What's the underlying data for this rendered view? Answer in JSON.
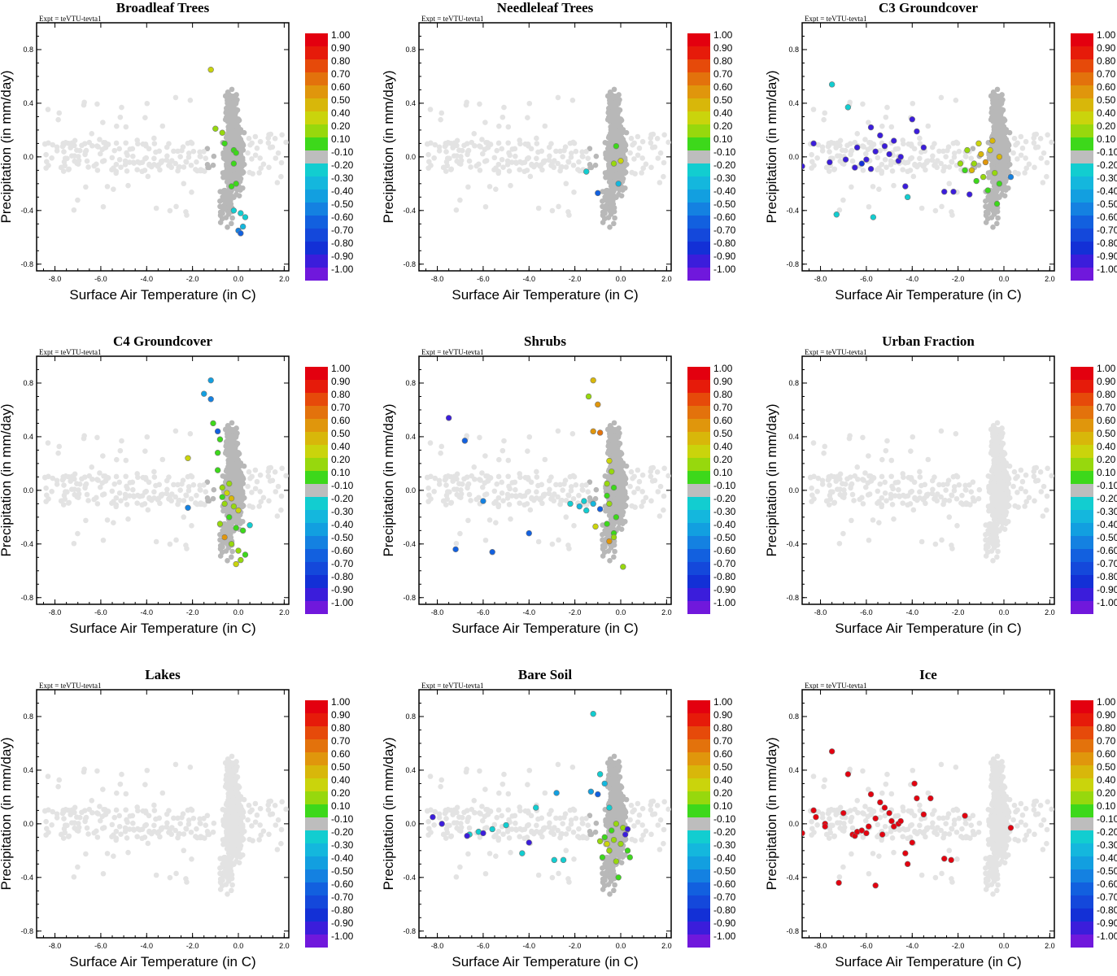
{
  "figure": {
    "expt_label": "Expt = teVTU-tevta1",
    "x_axis_label": "Surface Air Temperature (in C)",
    "y_axis_label": "Precipitation (in mm/day)"
  },
  "colorbar": {
    "levels": [
      "1.00",
      "0.90",
      "0.80",
      "0.70",
      "0.60",
      "0.50",
      "0.40",
      "0.20",
      "0.10",
      "-0.10",
      "-0.20",
      "-0.30",
      "-0.40",
      "-0.50",
      "-0.60",
      "-0.70",
      "-0.80",
      "-0.90",
      "-1.00"
    ],
    "colors": [
      "#e3000f",
      "#e61b0a",
      "#e64a0a",
      "#e3720c",
      "#e0960c",
      "#d8b70a",
      "#cad40c",
      "#97d80d",
      "#3dd81b",
      "#bdbdbd",
      "#12cdd0",
      "#14b7dd",
      "#129fe0",
      "#1481e1",
      "#1260df",
      "#1448db",
      "#1330d6",
      "#3b1ddb",
      "#7018dc"
    ]
  },
  "chart_data": [
    {
      "type": "scatter",
      "title": "Broadleaf Trees",
      "xlabel": "Surface Air Temperature (in C)",
      "ylabel": "Precipitation (in mm/day)",
      "xlim": [
        -8.8,
        2.2
      ],
      "ylim": [
        -0.85,
        1.0
      ],
      "xticks": [
        -8.0,
        -6.0,
        -4.0,
        -2.0,
        0.0,
        2.0
      ],
      "yticks": [
        0.8,
        0.4,
        0.0,
        -0.4,
        -0.8
      ],
      "colored_points": [
        [
          -1.2,
          0.65,
          0.35
        ],
        [
          -1.0,
          0.21,
          0.2
        ],
        [
          -0.7,
          0.18,
          0.3
        ],
        [
          -0.6,
          0.1,
          0.15
        ],
        [
          -0.2,
          0.05,
          0.15
        ],
        [
          -0.1,
          0.03,
          0.1
        ],
        [
          -0.2,
          -0.05,
          0.15
        ],
        [
          -0.1,
          -0.2,
          0.15
        ],
        [
          -0.3,
          -0.22,
          0.15
        ],
        [
          -0.2,
          -0.4,
          -0.2
        ],
        [
          0.1,
          -0.42,
          -0.2
        ],
        [
          0.3,
          -0.45,
          -0.2
        ],
        [
          0.2,
          -0.52,
          -0.3
        ],
        [
          0.0,
          -0.55,
          -0.5
        ],
        [
          0.1,
          -0.57,
          -0.6
        ]
      ]
    },
    {
      "type": "scatter",
      "title": "Needleleaf Trees",
      "xlabel": "Surface Air Temperature (in C)",
      "ylabel": "Precipitation (in mm/day)",
      "xlim": [
        -8.8,
        2.2
      ],
      "ylim": [
        -0.85,
        1.0
      ],
      "xticks": [
        -8.0,
        -6.0,
        -4.0,
        -2.0,
        0.0,
        2.0
      ],
      "yticks": [
        0.8,
        0.4,
        0.0,
        -0.4,
        -0.8
      ],
      "colored_points": [
        [
          -0.2,
          0.08,
          0.15
        ],
        [
          0.0,
          -0.03,
          0.4
        ],
        [
          -0.3,
          -0.05,
          0.3
        ],
        [
          -1.5,
          -0.11,
          -0.2
        ],
        [
          -1.0,
          -0.27,
          -0.6
        ],
        [
          -0.1,
          -0.2,
          -0.3
        ]
      ]
    },
    {
      "type": "scatter",
      "title": "C3 Groundcover",
      "xlabel": "Surface Air Temperature (in C)",
      "ylabel": "Precipitation (in mm/day)",
      "xlim": [
        -8.8,
        2.2
      ],
      "ylim": [
        -0.85,
        1.0
      ],
      "xticks": [
        -8.0,
        -6.0,
        -4.0,
        -2.0,
        0.0,
        2.0
      ],
      "yticks": [
        0.8,
        0.4,
        0.0,
        -0.4,
        -0.8
      ],
      "colored_points": [
        [
          -8.8,
          -0.07,
          -0.9
        ],
        [
          -8.3,
          0.1,
          -0.9
        ],
        [
          -7.5,
          0.54,
          -0.25
        ],
        [
          -6.8,
          0.37,
          -0.25
        ],
        [
          -7.3,
          -0.43,
          -0.25
        ],
        [
          -5.7,
          -0.45,
          -0.2
        ],
        [
          -7.6,
          -0.04,
          -0.9
        ],
        [
          -6.9,
          -0.02,
          -0.9
        ],
        [
          -6.5,
          -0.08,
          -0.9
        ],
        [
          -6.2,
          -0.05,
          -0.85
        ],
        [
          -6.0,
          -0.02,
          -0.9
        ],
        [
          -5.8,
          -0.09,
          -0.9
        ],
        [
          -5.6,
          0.04,
          -0.9
        ],
        [
          -5.4,
          0.16,
          -0.9
        ],
        [
          -5.2,
          0.08,
          -0.9
        ],
        [
          -5.0,
          0.02,
          -0.9
        ],
        [
          -4.8,
          0.12,
          -0.9
        ],
        [
          -4.6,
          -0.03,
          -0.9
        ],
        [
          -4.5,
          0.0,
          -0.9
        ],
        [
          -4.3,
          -0.22,
          -0.9
        ],
        [
          -4.2,
          -0.3,
          -0.2
        ],
        [
          -3.8,
          0.19,
          -0.9
        ],
        [
          -4.0,
          0.28,
          -0.9
        ],
        [
          -3.5,
          0.07,
          -0.9
        ],
        [
          -5.8,
          0.22,
          -0.9
        ],
        [
          -6.4,
          0.07,
          -0.9
        ],
        [
          -2.6,
          -0.26,
          -0.9
        ],
        [
          -2.2,
          -0.26,
          -0.9
        ],
        [
          -1.5,
          -0.28,
          -0.9
        ],
        [
          -1.7,
          -0.1,
          0.15
        ],
        [
          -1.3,
          -0.05,
          0.3
        ],
        [
          -1.0,
          0.02,
          0.5
        ],
        [
          -0.8,
          -0.04,
          0.6
        ],
        [
          -0.6,
          0.05,
          0.4
        ],
        [
          -0.5,
          0.12,
          0.5
        ],
        [
          -0.9,
          -0.15,
          0.2
        ],
        [
          -1.2,
          -0.18,
          0.15
        ],
        [
          -0.4,
          -0.12,
          0.2
        ],
        [
          -0.2,
          -0.2,
          0.15
        ],
        [
          -1.6,
          0.05,
          0.2
        ],
        [
          -1.9,
          -0.05,
          0.3
        ],
        [
          -0.7,
          -0.25,
          0.15
        ],
        [
          -0.3,
          -0.35,
          0.15
        ],
        [
          0.3,
          -0.15,
          -0.5
        ],
        [
          -0.2,
          0.0,
          0.45
        ],
        [
          -1.1,
          0.1,
          0.4
        ],
        [
          -1.4,
          -0.1,
          0.5
        ]
      ]
    },
    {
      "type": "scatter",
      "title": "C4 Groundcover",
      "xlabel": "Surface Air Temperature (in C)",
      "ylabel": "Precipitation (in mm/day)",
      "xlim": [
        -8.8,
        2.2
      ],
      "ylim": [
        -0.85,
        1.0
      ],
      "xticks": [
        -8.0,
        -6.0,
        -4.0,
        -2.0,
        0.0,
        2.0
      ],
      "yticks": [
        0.8,
        0.4,
        0.0,
        -0.4,
        -0.8
      ],
      "colored_points": [
        [
          -1.2,
          0.82,
          -0.4
        ],
        [
          -1.5,
          0.72,
          -0.4
        ],
        [
          -1.2,
          0.68,
          -0.5
        ],
        [
          -1.1,
          0.5,
          0.15
        ],
        [
          -0.9,
          0.44,
          -0.6
        ],
        [
          -0.8,
          0.38,
          0.15
        ],
        [
          -0.9,
          0.28,
          0.15
        ],
        [
          -2.2,
          0.24,
          0.4
        ],
        [
          -2.2,
          -0.13,
          -0.5
        ],
        [
          -0.9,
          0.15,
          0.15
        ],
        [
          -0.7,
          0.02,
          0.3
        ],
        [
          -0.5,
          -0.02,
          0.4
        ],
        [
          -0.3,
          -0.06,
          0.5
        ],
        [
          -0.6,
          -0.1,
          0.2
        ],
        [
          -0.2,
          -0.12,
          0.3
        ],
        [
          0.0,
          -0.15,
          0.4
        ],
        [
          -0.4,
          -0.2,
          0.15
        ],
        [
          -0.8,
          -0.25,
          0.2
        ],
        [
          -0.1,
          -0.28,
          0.15
        ],
        [
          0.2,
          -0.3,
          0.15
        ],
        [
          -0.6,
          -0.35,
          0.6
        ],
        [
          -0.3,
          -0.4,
          0.3
        ],
        [
          0.0,
          -0.45,
          0.2
        ],
        [
          0.3,
          -0.48,
          0.15
        ],
        [
          0.5,
          -0.26,
          -0.2
        ],
        [
          0.1,
          -0.52,
          0.3
        ],
        [
          -0.1,
          -0.55,
          0.35
        ],
        [
          -0.7,
          -0.05,
          0.15
        ],
        [
          -0.4,
          0.05,
          0.2
        ]
      ]
    },
    {
      "type": "scatter",
      "title": "Shrubs",
      "xlabel": "Surface Air Temperature (in C)",
      "ylabel": "Precipitation (in mm/day)",
      "xlim": [
        -8.8,
        2.2
      ],
      "ylim": [
        -0.85,
        1.0
      ],
      "xticks": [
        -8.0,
        -6.0,
        -4.0,
        -2.0,
        0.0,
        2.0
      ],
      "yticks": [
        0.8,
        0.4,
        0.0,
        -0.4,
        -0.8
      ],
      "colored_points": [
        [
          -1.2,
          0.82,
          0.45
        ],
        [
          -1.4,
          0.7,
          0.3
        ],
        [
          -1.0,
          0.64,
          0.6
        ],
        [
          -1.2,
          0.44,
          0.6
        ],
        [
          -0.9,
          0.43,
          0.65
        ],
        [
          -0.5,
          0.22,
          0.35
        ],
        [
          -0.4,
          0.14,
          0.2
        ],
        [
          -7.5,
          0.54,
          -0.9
        ],
        [
          -6.8,
          0.37,
          -0.6
        ],
        [
          -7.2,
          -0.44,
          -0.6
        ],
        [
          -5.6,
          -0.46,
          -0.6
        ],
        [
          -4.0,
          -0.32,
          -0.6
        ],
        [
          -6.0,
          -0.08,
          -0.5
        ],
        [
          -2.2,
          -0.1,
          -0.25
        ],
        [
          -1.8,
          -0.12,
          -0.3
        ],
        [
          -1.5,
          -0.15,
          -0.25
        ],
        [
          -1.6,
          -0.08,
          -0.2
        ],
        [
          -1.2,
          -0.1,
          -0.3
        ],
        [
          -0.9,
          -0.14,
          -0.6
        ],
        [
          -1.1,
          -0.27,
          0.4
        ],
        [
          -0.6,
          -0.04,
          0.15
        ],
        [
          -0.3,
          0.02,
          0.15
        ],
        [
          -0.5,
          -0.1,
          0.2
        ],
        [
          -0.2,
          -0.2,
          0.15
        ],
        [
          -0.6,
          -0.25,
          0.15
        ],
        [
          -0.3,
          -0.32,
          0.15
        ],
        [
          -0.5,
          -0.38,
          0.6
        ],
        [
          -0.3,
          -0.35,
          0.3
        ],
        [
          0.1,
          -0.57,
          0.3
        ],
        [
          -0.6,
          0.05,
          0.2
        ]
      ]
    },
    {
      "type": "scatter",
      "title": "Urban Fraction",
      "xlabel": "Surface Air Temperature (in C)",
      "ylabel": "Precipitation (in mm/day)",
      "xlim": [
        -8.8,
        2.2
      ],
      "ylim": [
        -0.85,
        1.0
      ],
      "xticks": [
        -8.0,
        -6.0,
        -4.0,
        -2.0,
        0.0,
        2.0
      ],
      "yticks": [
        0.8,
        0.4,
        0.0,
        -0.4,
        -0.8
      ],
      "colored_points": []
    },
    {
      "type": "scatter",
      "title": "Lakes",
      "xlabel": "Surface Air Temperature (in C)",
      "ylabel": "Precipitation (in mm/day)",
      "xlim": [
        -8.8,
        2.2
      ],
      "ylim": [
        -0.85,
        1.0
      ],
      "xticks": [
        -8.0,
        -6.0,
        -4.0,
        -2.0,
        0.0,
        2.0
      ],
      "yticks": [
        0.8,
        0.4,
        0.0,
        -0.4,
        -0.8
      ],
      "colored_points": []
    },
    {
      "type": "scatter",
      "title": "Bare Soil",
      "xlabel": "Surface Air Temperature (in C)",
      "ylabel": "Precipitation (in mm/day)",
      "xlim": [
        -8.8,
        2.2
      ],
      "ylim": [
        -0.85,
        1.0
      ],
      "xticks": [
        -8.0,
        -6.0,
        -4.0,
        -2.0,
        0.0,
        2.0
      ],
      "yticks": [
        0.8,
        0.4,
        0.0,
        -0.4,
        -0.8
      ],
      "colored_points": [
        [
          -1.2,
          0.82,
          -0.2
        ],
        [
          -0.9,
          0.37,
          -0.2
        ],
        [
          -0.7,
          0.3,
          -0.3
        ],
        [
          -0.5,
          0.12,
          -0.2
        ],
        [
          -1.0,
          0.22,
          -0.6
        ],
        [
          -1.3,
          0.24,
          -0.4
        ],
        [
          -2.8,
          0.23,
          -0.4
        ],
        [
          -3.7,
          0.12,
          -0.2
        ],
        [
          -4.0,
          -0.14,
          -0.9
        ],
        [
          -4.3,
          -0.22,
          -0.2
        ],
        [
          -2.9,
          -0.27,
          -0.2
        ],
        [
          -2.5,
          -0.27,
          -0.2
        ],
        [
          -5.0,
          -0.01,
          -0.2
        ],
        [
          -5.6,
          -0.04,
          -0.25
        ],
        [
          -6.2,
          -0.06,
          -0.2
        ],
        [
          -6.6,
          -0.08,
          -0.2
        ],
        [
          -8.2,
          0.05,
          -0.9
        ],
        [
          -7.8,
          0.0,
          -0.9
        ],
        [
          -6.0,
          -0.07,
          -0.9
        ],
        [
          -6.7,
          -0.09,
          -0.9
        ],
        [
          -0.4,
          -0.05,
          0.15
        ],
        [
          -0.2,
          0.0,
          0.2
        ],
        [
          0.1,
          -0.03,
          0.3
        ],
        [
          -0.7,
          -0.1,
          0.15
        ],
        [
          -0.3,
          -0.12,
          0.2
        ],
        [
          0.0,
          -0.15,
          0.25
        ],
        [
          0.3,
          -0.2,
          0.15
        ],
        [
          -0.5,
          -0.2,
          0.3
        ],
        [
          -0.8,
          -0.25,
          0.15
        ],
        [
          -0.2,
          -0.28,
          0.2
        ],
        [
          0.4,
          -0.25,
          0.15
        ],
        [
          -0.1,
          -0.4,
          0.15
        ],
        [
          -0.6,
          -0.15,
          0.4
        ],
        [
          0.2,
          -0.08,
          -0.9
        ],
        [
          0.3,
          -0.04,
          -0.9
        ],
        [
          -0.9,
          -0.13,
          0.2
        ]
      ]
    },
    {
      "type": "scatter",
      "title": "Ice",
      "xlabel": "Surface Air Temperature (in C)",
      "ylabel": "Precipitation (in mm/day)",
      "xlim": [
        -8.8,
        2.2
      ],
      "ylim": [
        -0.85,
        1.0
      ],
      "xticks": [
        -8.0,
        -6.0,
        -4.0,
        -2.0,
        0.0,
        2.0
      ],
      "yticks": [
        0.8,
        0.4,
        0.0,
        -0.4,
        -0.8
      ],
      "colored_points": [
        [
          -8.8,
          -0.07,
          1.0
        ],
        [
          -8.3,
          0.1,
          1.0
        ],
        [
          -8.2,
          0.05,
          1.0
        ],
        [
          -7.8,
          0.0,
          1.0
        ],
        [
          -7.8,
          -0.02,
          1.0
        ],
        [
          -7.5,
          0.54,
          1.0
        ],
        [
          -7.2,
          -0.44,
          1.0
        ],
        [
          -7.0,
          0.08,
          1.0
        ],
        [
          -6.8,
          0.37,
          1.0
        ],
        [
          -6.6,
          -0.08,
          1.0
        ],
        [
          -6.5,
          -0.09,
          1.0
        ],
        [
          -6.4,
          -0.06,
          1.0
        ],
        [
          -6.2,
          -0.05,
          1.0
        ],
        [
          -6.0,
          -0.07,
          1.0
        ],
        [
          -5.9,
          -0.02,
          1.0
        ],
        [
          -5.8,
          0.22,
          1.0
        ],
        [
          -5.6,
          -0.46,
          1.0
        ],
        [
          -5.6,
          0.04,
          1.0
        ],
        [
          -5.4,
          0.16,
          1.0
        ],
        [
          -5.3,
          -0.08,
          1.0
        ],
        [
          -5.2,
          0.12,
          1.0
        ],
        [
          -5.0,
          0.08,
          1.0
        ],
        [
          -4.9,
          0.02,
          1.0
        ],
        [
          -4.8,
          -0.02,
          1.0
        ],
        [
          -4.6,
          0.0,
          1.0
        ],
        [
          -4.5,
          0.02,
          1.0
        ],
        [
          -4.3,
          -0.22,
          1.0
        ],
        [
          -4.2,
          -0.3,
          1.0
        ],
        [
          -4.0,
          -0.14,
          1.0
        ],
        [
          -3.9,
          0.3,
          1.0
        ],
        [
          -3.8,
          0.19,
          1.0
        ],
        [
          -3.5,
          0.07,
          1.0
        ],
        [
          -3.2,
          0.19,
          1.0
        ],
        [
          -2.6,
          -0.26,
          1.0
        ],
        [
          -2.3,
          -0.27,
          1.0
        ],
        [
          -1.7,
          0.06,
          1.0
        ],
        [
          0.3,
          -0.03,
          1.0
        ]
      ]
    }
  ]
}
